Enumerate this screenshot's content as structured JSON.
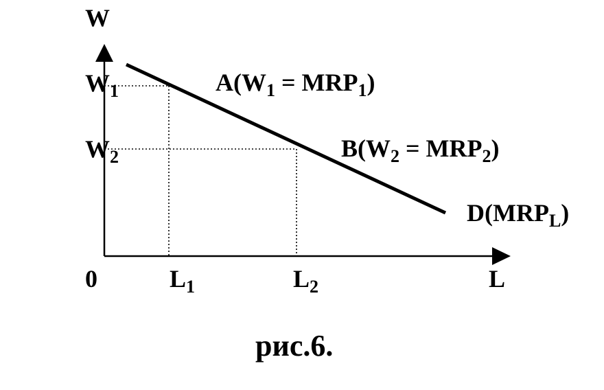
{
  "labels": {
    "y_axis": [
      {
        "text": "W"
      }
    ],
    "w1": [
      {
        "text": "W"
      },
      {
        "sub": "1"
      }
    ],
    "w2": [
      {
        "text": "W"
      },
      {
        "sub": "2"
      }
    ],
    "point_a": [
      {
        "text": "A(W"
      },
      {
        "sub": "1"
      },
      {
        "text": " = MRP"
      },
      {
        "sub": "1"
      },
      {
        "text": ")"
      }
    ],
    "point_b": [
      {
        "text": "B(W"
      },
      {
        "sub": "2"
      },
      {
        "text": " = MRP"
      },
      {
        "sub": "2"
      },
      {
        "text": ")"
      }
    ],
    "demand": [
      {
        "text": "D(MRP"
      },
      {
        "sub": "L"
      },
      {
        "text": ")"
      }
    ],
    "origin": [
      {
        "text": "0"
      }
    ],
    "l1": [
      {
        "text": "L"
      },
      {
        "sub": "1"
      }
    ],
    "l2": [
      {
        "text": "L"
      },
      {
        "sub": "2"
      }
    ],
    "x_axis": [
      {
        "text": "L"
      }
    ],
    "caption": [
      {
        "text": "рис.6."
      }
    ]
  }
}
